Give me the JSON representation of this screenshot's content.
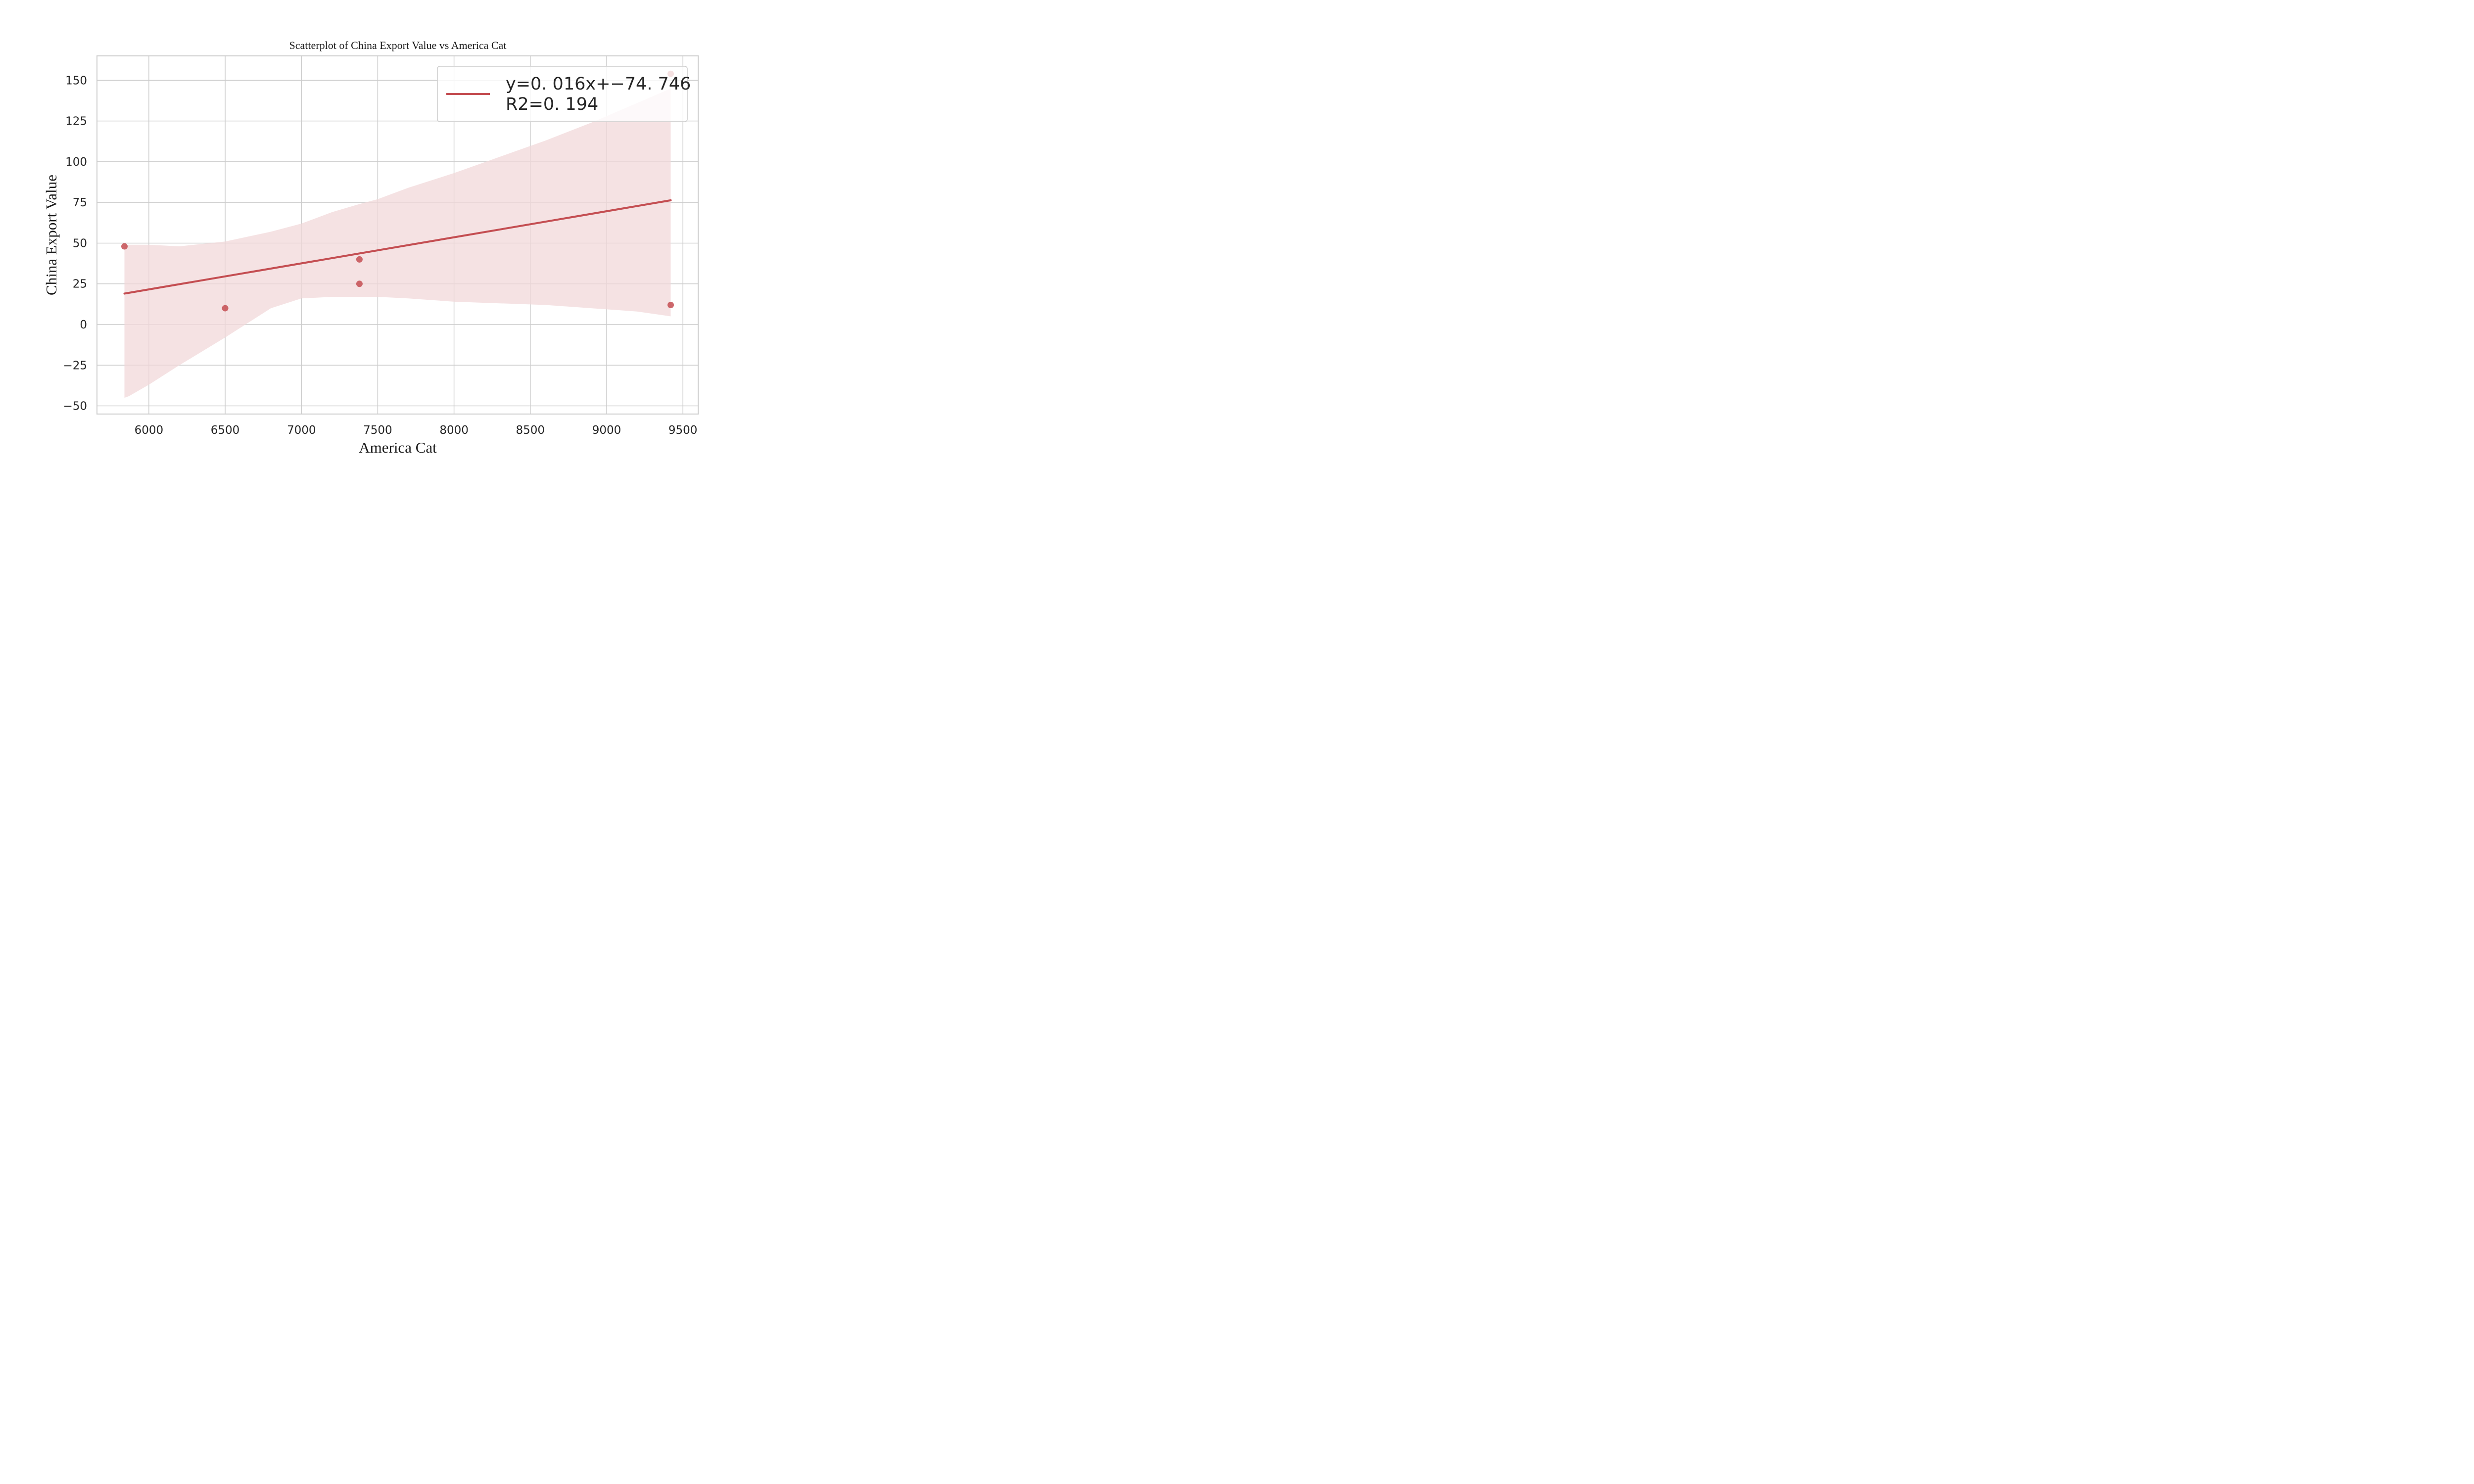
{
  "chart_data": {
    "type": "scatter",
    "title": "Scatterplot of China Export Value vs America Cat",
    "xlabel": "America Cat",
    "ylabel": "China Export Value",
    "xlim": [
      5660,
      9600
    ],
    "ylim": [
      -55,
      165
    ],
    "xticks": [
      6000,
      6500,
      7000,
      7500,
      8000,
      8500,
      9000,
      9500
    ],
    "yticks": [
      -50,
      -25,
      0,
      25,
      50,
      75,
      100,
      125,
      150
    ],
    "ytick_labels": [
      "−50",
      "−25",
      "0",
      "25",
      "50",
      "75",
      "100",
      "125",
      "150"
    ],
    "grid": true,
    "legend_position": "upper-right",
    "points": [
      {
        "x": 5840,
        "y": 48
      },
      {
        "x": 6500,
        "y": 10
      },
      {
        "x": 7380,
        "y": 40
      },
      {
        "x": 7380,
        "y": 25
      },
      {
        "x": 9420,
        "y": 154
      },
      {
        "x": 9420,
        "y": 12
      }
    ],
    "regression": {
      "x": [
        5840,
        9420
      ],
      "y": [
        19,
        76.3
      ],
      "equation": "y=0. 016x+−74. 746",
      "r2": "R2=0. 194"
    },
    "confidence_band": {
      "x": [
        5840,
        5870,
        6000,
        6200,
        6500,
        6800,
        7000,
        7200,
        7380,
        7500,
        7700,
        8000,
        8300,
        8600,
        8900,
        9200,
        9420
      ],
      "upper": [
        49,
        49,
        49,
        48,
        51,
        57,
        62,
        69,
        74,
        77,
        84,
        93,
        103,
        113,
        124,
        136,
        145
      ],
      "lower": [
        -45,
        -44,
        -37,
        -25,
        -8,
        10,
        16,
        17,
        17,
        17,
        16,
        14,
        13,
        12,
        10,
        8,
        5
      ]
    },
    "colors": {
      "series": "#c44e52",
      "band": "#f2d8da",
      "grid": "#cccccc",
      "frame": "#cccccc"
    }
  }
}
